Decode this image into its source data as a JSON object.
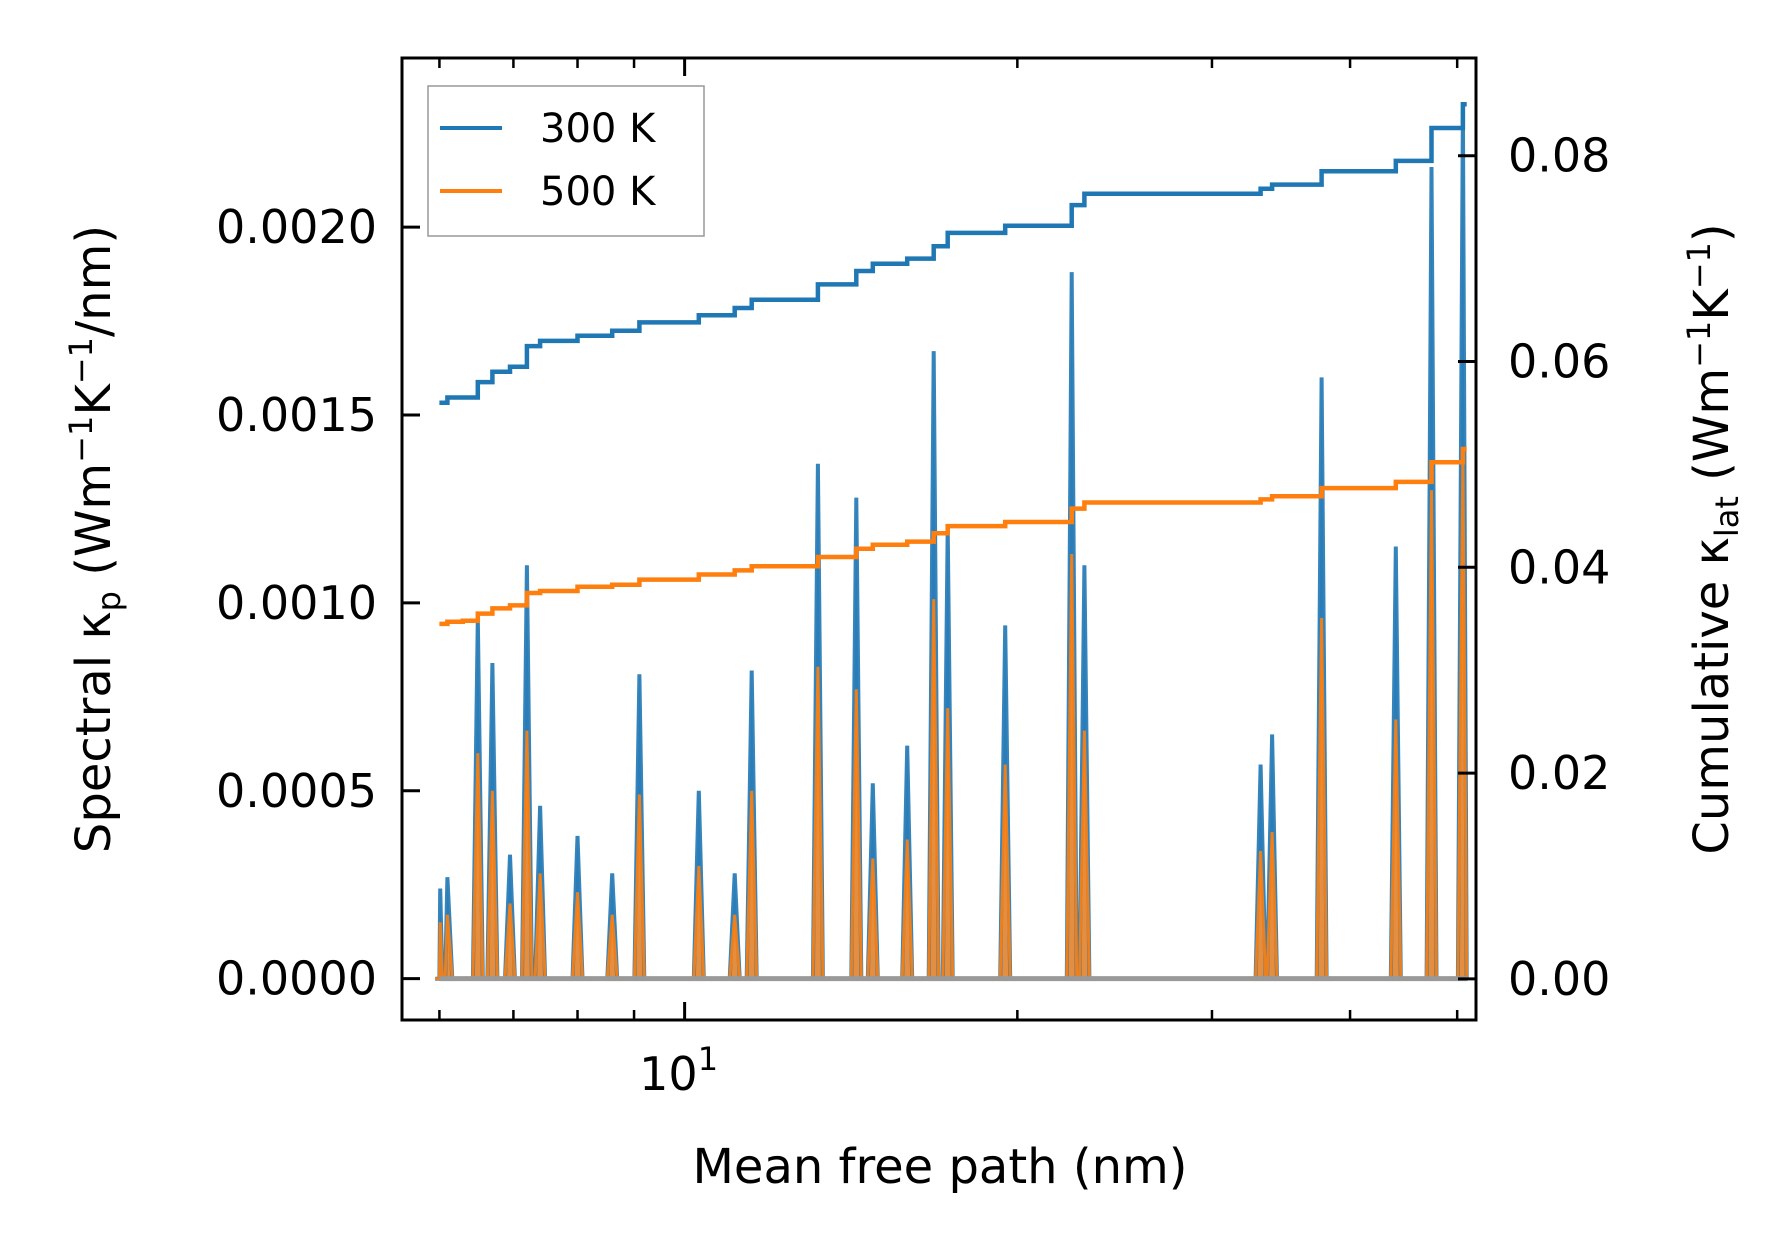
{
  "chart_data": {
    "type": "line",
    "xscale": "log",
    "xlim": [
      5.55,
      52
    ],
    "xlabel": "Mean free path (nm)",
    "ylabel_left": {
      "main": "Spectral κ",
      "sub": "p",
      "unit_open": " (Wm",
      "sup1": "−1",
      "mid": "K",
      "sup2": "−1",
      "tail": "/nm)"
    },
    "ylabel_right": {
      "main": "Cumulative κ",
      "sub": "lat",
      "unit_open": " (Wm",
      "sup1": "−1",
      "mid": "K",
      "sup2": "−1",
      "tail": ")"
    },
    "ylim_left": [
      -0.00011,
      0.00245
    ],
    "ylim_right": [
      -0.004,
      0.0895
    ],
    "xticks_major": [
      {
        "value": 10,
        "base": "10",
        "exp": "1"
      }
    ],
    "xticks_minor": [
      6,
      7,
      8,
      9,
      20,
      30,
      40,
      50
    ],
    "yticks_left": [
      {
        "value": 0.0,
        "label": "0.0000"
      },
      {
        "value": 0.0005,
        "label": "0.0005"
      },
      {
        "value": 0.001,
        "label": "0.0010"
      },
      {
        "value": 0.0015,
        "label": "0.0015"
      },
      {
        "value": 0.002,
        "label": "0.0020"
      }
    ],
    "yticks_right": [
      {
        "value": 0.0,
        "label": "0.00"
      },
      {
        "value": 0.02,
        "label": "0.02"
      },
      {
        "value": 0.04,
        "label": "0.04"
      },
      {
        "value": 0.06,
        "label": "0.06"
      },
      {
        "value": 0.08,
        "label": "0.08"
      }
    ],
    "legend": {
      "position": "upper-left",
      "entries": [
        {
          "name": "300 K",
          "color": "#1f77b4"
        },
        {
          "name": "500 K",
          "color": "#ff7f0e"
        }
      ]
    },
    "spectral": {
      "x_start": 6.0,
      "x_end": 51.0,
      "peaks": [
        {
          "x": 6.01,
          "v300": 0.00024,
          "v500": 0.00015
        },
        {
          "x": 6.1,
          "v300": 0.00027,
          "v500": 0.00017
        },
        {
          "x": 6.5,
          "v300": 0.00096,
          "v500": 0.0006
        },
        {
          "x": 6.7,
          "v300": 0.00084,
          "v500": 0.0005
        },
        {
          "x": 6.95,
          "v300": 0.00033,
          "v500": 0.0002
        },
        {
          "x": 7.2,
          "v300": 0.0011,
          "v500": 0.00066
        },
        {
          "x": 7.4,
          "v300": 0.00046,
          "v500": 0.00028
        },
        {
          "x": 8.0,
          "v300": 0.00038,
          "v500": 0.00023
        },
        {
          "x": 8.6,
          "v300": 0.00028,
          "v500": 0.00017
        },
        {
          "x": 9.1,
          "v300": 0.00081,
          "v500": 0.00049
        },
        {
          "x": 10.3,
          "v300": 0.0005,
          "v500": 0.0003
        },
        {
          "x": 11.1,
          "v300": 0.00028,
          "v500": 0.00017
        },
        {
          "x": 11.5,
          "v300": 0.00082,
          "v500": 0.0005
        },
        {
          "x": 13.2,
          "v300": 0.00137,
          "v500": 0.00083
        },
        {
          "x": 14.3,
          "v300": 0.00128,
          "v500": 0.00077
        },
        {
          "x": 14.8,
          "v300": 0.00052,
          "v500": 0.00032
        },
        {
          "x": 15.9,
          "v300": 0.00062,
          "v500": 0.00037
        },
        {
          "x": 16.8,
          "v300": 0.00167,
          "v500": 0.00101
        },
        {
          "x": 17.3,
          "v300": 0.0012,
          "v500": 0.00072
        },
        {
          "x": 19.5,
          "v300": 0.00094,
          "v500": 0.00057
        },
        {
          "x": 22.4,
          "v300": 0.00188,
          "v500": 0.00113
        },
        {
          "x": 23.0,
          "v300": 0.0011,
          "v500": 0.00066
        },
        {
          "x": 33.2,
          "v300": 0.00057,
          "v500": 0.00034
        },
        {
          "x": 34.0,
          "v300": 0.00065,
          "v500": 0.00039
        },
        {
          "x": 37.7,
          "v300": 0.0016,
          "v500": 0.00096
        },
        {
          "x": 44.0,
          "v300": 0.00115,
          "v500": 0.00069
        },
        {
          "x": 47.4,
          "v300": 0.00216,
          "v500": 0.0013
        },
        {
          "x": 50.6,
          "v300": 0.00232,
          "v500": 0.0014
        }
      ]
    },
    "cumulative": {
      "series": [
        {
          "name": "300 K",
          "color": "#1f77b4",
          "points": [
            [
              6.0,
              0.056
            ],
            [
              6.1,
              0.0565
            ],
            [
              6.3,
              0.0565
            ],
            [
              6.5,
              0.058
            ],
            [
              6.7,
              0.059
            ],
            [
              6.95,
              0.0595
            ],
            [
              7.2,
              0.0615
            ],
            [
              7.4,
              0.062
            ],
            [
              8.0,
              0.0625
            ],
            [
              8.6,
              0.063
            ],
            [
              9.1,
              0.0638
            ],
            [
              10.3,
              0.0645
            ],
            [
              11.1,
              0.0652
            ],
            [
              11.5,
              0.066
            ],
            [
              13.2,
              0.0675
            ],
            [
              14.3,
              0.0688
            ],
            [
              14.8,
              0.0695
            ],
            [
              15.9,
              0.07
            ],
            [
              16.8,
              0.0712
            ],
            [
              17.3,
              0.0725
            ],
            [
              19.5,
              0.0732
            ],
            [
              22.4,
              0.0752
            ],
            [
              23.0,
              0.0763
            ],
            [
              33.2,
              0.0768
            ],
            [
              34.0,
              0.0772
            ],
            [
              37.7,
              0.0785
            ],
            [
              44.0,
              0.0795
            ],
            [
              47.4,
              0.0827
            ],
            [
              50.6,
              0.085
            ],
            [
              51.0,
              0.085
            ]
          ]
        },
        {
          "name": "500 K",
          "color": "#ff7f0e",
          "points": [
            [
              6.0,
              0.0345
            ],
            [
              6.1,
              0.0347
            ],
            [
              6.3,
              0.0348
            ],
            [
              6.5,
              0.0355
            ],
            [
              6.7,
              0.036
            ],
            [
              6.95,
              0.0363
            ],
            [
              7.2,
              0.0375
            ],
            [
              7.4,
              0.0377
            ],
            [
              8.0,
              0.0381
            ],
            [
              8.6,
              0.0383
            ],
            [
              9.1,
              0.0388
            ],
            [
              10.3,
              0.0393
            ],
            [
              11.1,
              0.0397
            ],
            [
              11.5,
              0.0401
            ],
            [
              13.2,
              0.041
            ],
            [
              14.3,
              0.0418
            ],
            [
              14.8,
              0.0422
            ],
            [
              15.9,
              0.0425
            ],
            [
              16.8,
              0.0433
            ],
            [
              17.3,
              0.044
            ],
            [
              19.5,
              0.0444
            ],
            [
              22.4,
              0.0457
            ],
            [
              23.0,
              0.0463
            ],
            [
              33.2,
              0.0466
            ],
            [
              34.0,
              0.0469
            ],
            [
              37.7,
              0.0477
            ],
            [
              44.0,
              0.0483
            ],
            [
              47.4,
              0.0502
            ],
            [
              50.6,
              0.0515
            ],
            [
              51.0,
              0.0515
            ]
          ]
        }
      ]
    }
  }
}
